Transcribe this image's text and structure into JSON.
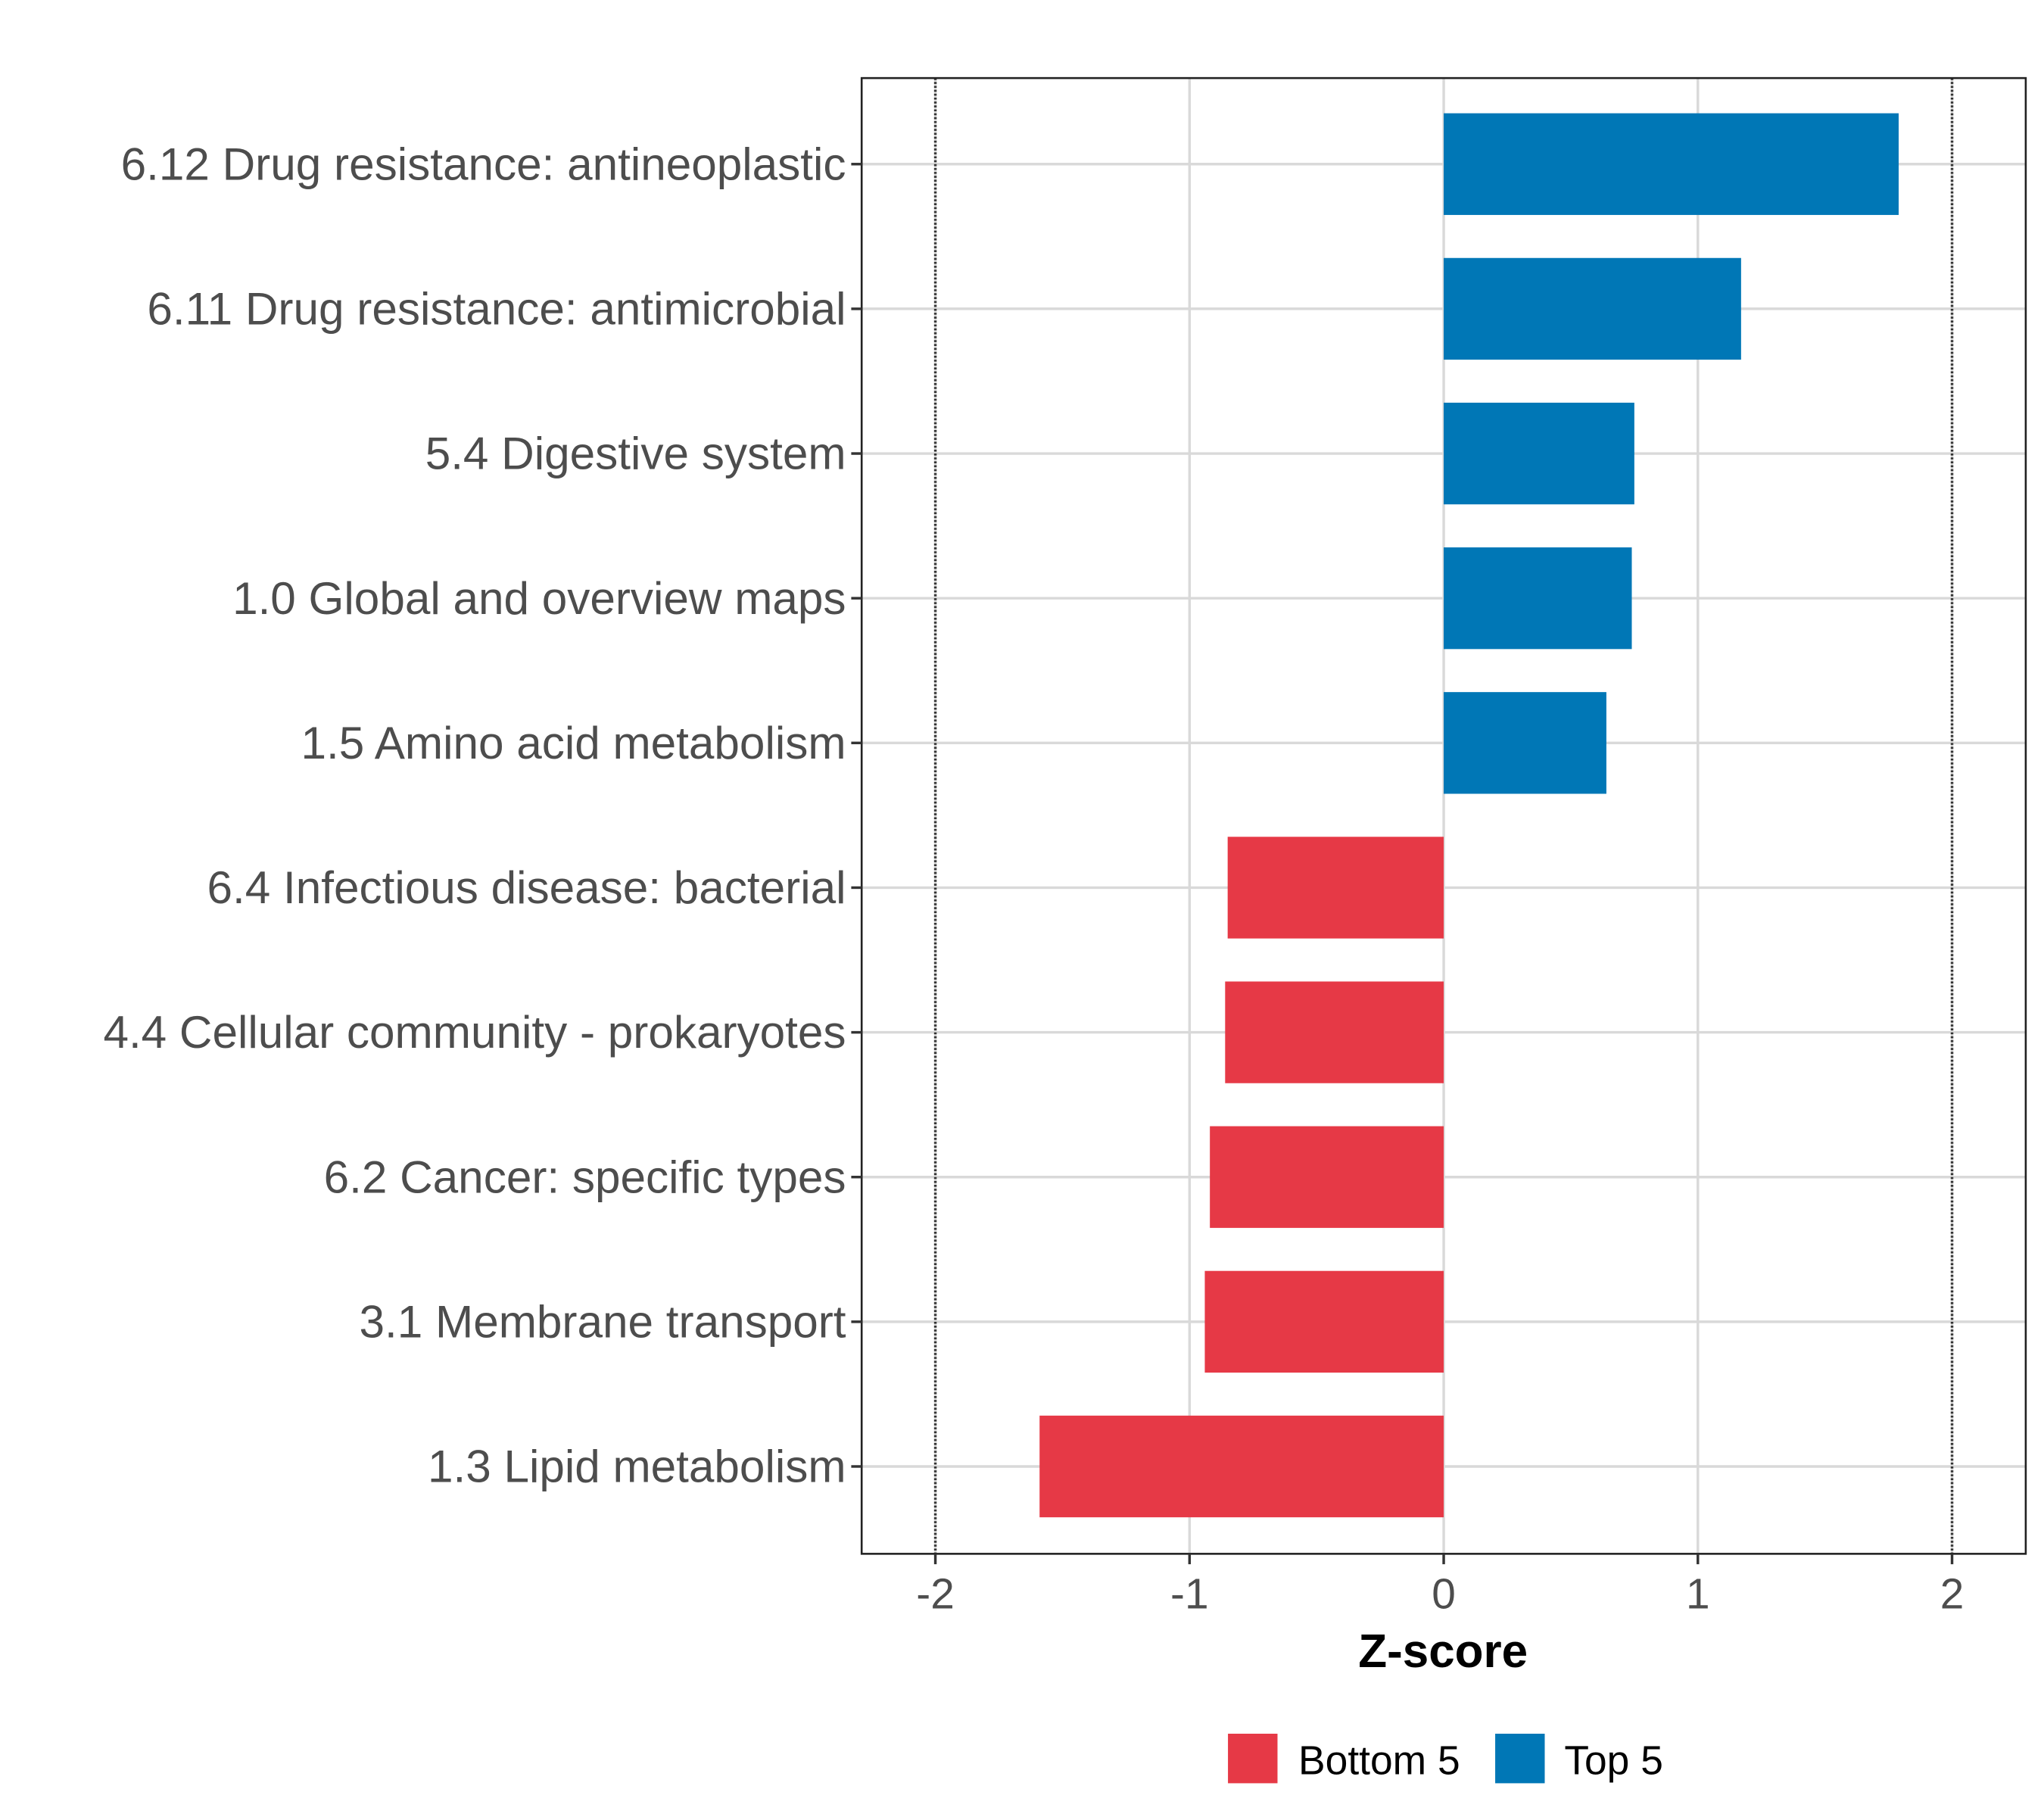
{
  "chart_data": {
    "type": "bar",
    "orientation": "horizontal",
    "title": "",
    "xlabel": "Z-score",
    "ylabel": "",
    "xlim": [
      -2.29,
      2.29
    ],
    "xticks": [
      -2,
      -1,
      0,
      1,
      2
    ],
    "xtick_labels": [
      "-2",
      "-1",
      "0",
      "1",
      "2"
    ],
    "reference_lines": [
      -2,
      2
    ],
    "grid": true,
    "legend_position": "bottom",
    "legend": [
      {
        "label": "Bottom 5",
        "color": "#E63946"
      },
      {
        "label": "Top 5",
        "color": "#0077B6"
      }
    ],
    "categories": [
      "6.12 Drug resistance: antineoplastic",
      "6.11 Drug resistance: antimicrobial",
      "5.4 Digestive system",
      "1.0 Global and overview maps",
      "1.5 Amino acid metabolism",
      "6.4 Infectious disease: bacterial",
      "4.4 Cellular community - prokaryotes",
      "6.2 Cancer: specific types",
      "3.1 Membrane transport",
      "1.3 Lipid metabolism"
    ],
    "values": [
      1.79,
      1.17,
      0.75,
      0.74,
      0.64,
      -0.85,
      -0.86,
      -0.92,
      -0.94,
      -1.59
    ],
    "groups": [
      "Top 5",
      "Top 5",
      "Top 5",
      "Top 5",
      "Top 5",
      "Bottom 5",
      "Bottom 5",
      "Bottom 5",
      "Bottom 5",
      "Bottom 5"
    ]
  }
}
